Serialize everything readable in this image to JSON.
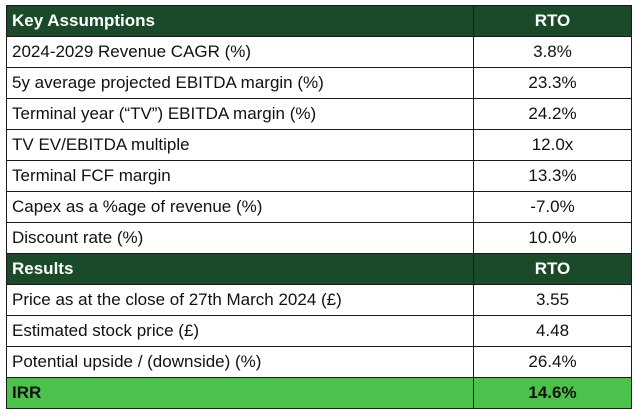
{
  "colors": {
    "header_bg": "#1b4a2a",
    "header_text": "#ffffff",
    "irr_bg": "#4cc24c"
  },
  "assumptions": {
    "header": {
      "label": "Key Assumptions",
      "col": "RTO"
    },
    "rows": [
      {
        "label": "2024-2029 Revenue CAGR (%)",
        "value": "3.8%"
      },
      {
        "label": "5y average projected EBITDA margin (%)",
        "value": "23.3%"
      },
      {
        "label": "Terminal year (“TV”) EBITDA margin (%)",
        "value": "24.2%"
      },
      {
        "label": "TV EV/EBITDA multiple",
        "value": "12.0x"
      },
      {
        "label": "Terminal FCF margin",
        "value": "13.3%"
      },
      {
        "label": "Capex as a %age of revenue (%)",
        "value": "-7.0%"
      },
      {
        "label": "Discount rate (%)",
        "value": "10.0%"
      }
    ]
  },
  "results": {
    "header": {
      "label": "Results",
      "col": "RTO"
    },
    "rows": [
      {
        "label": "Price as at the close of 27th March 2024 (£)",
        "value": "3.55"
      },
      {
        "label": "Estimated stock price (£)",
        "value": "4.48"
      },
      {
        "label": "Potential upside / (downside) (%)",
        "value": "26.4%"
      }
    ],
    "irr": {
      "label": "IRR",
      "value": "14.6%"
    }
  }
}
